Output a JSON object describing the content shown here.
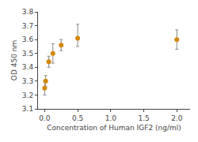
{
  "chart_data": {
    "type": "scatter",
    "marker": "circle",
    "color": "#D4870A",
    "x": [
      0,
      0.016,
      0.063,
      0.125,
      0.25,
      0.5,
      2.0
    ],
    "values": [
      3.25,
      3.3,
      3.44,
      3.5,
      3.56,
      3.61,
      3.6
    ],
    "yerr_low": [
      0.05,
      0.04,
      0.04,
      0.07,
      0.04,
      0.06,
      0.07
    ],
    "yerr_high": [
      0.05,
      0.04,
      0.04,
      0.07,
      0.04,
      0.1,
      0.07
    ],
    "xlabel": "Concentration of Human IGF2 (ng/ml)",
    "ylabel": "OD 450 nm",
    "xlim": [
      -0.1,
      2.2
    ],
    "ylim": [
      3.1,
      3.8
    ],
    "xticks": [
      {
        "value": 0,
        "label": "0.0"
      },
      {
        "value": 0.5,
        "label": "0.5"
      },
      {
        "value": 1,
        "label": "1.0"
      },
      {
        "value": 1.5,
        "label": "1.5"
      },
      {
        "value": 2,
        "label": "2.0"
      }
    ],
    "yticks": [
      3.1,
      3.2,
      3.3,
      3.4,
      3.5,
      3.6,
      3.7,
      3.8
    ],
    "grid": false
  }
}
